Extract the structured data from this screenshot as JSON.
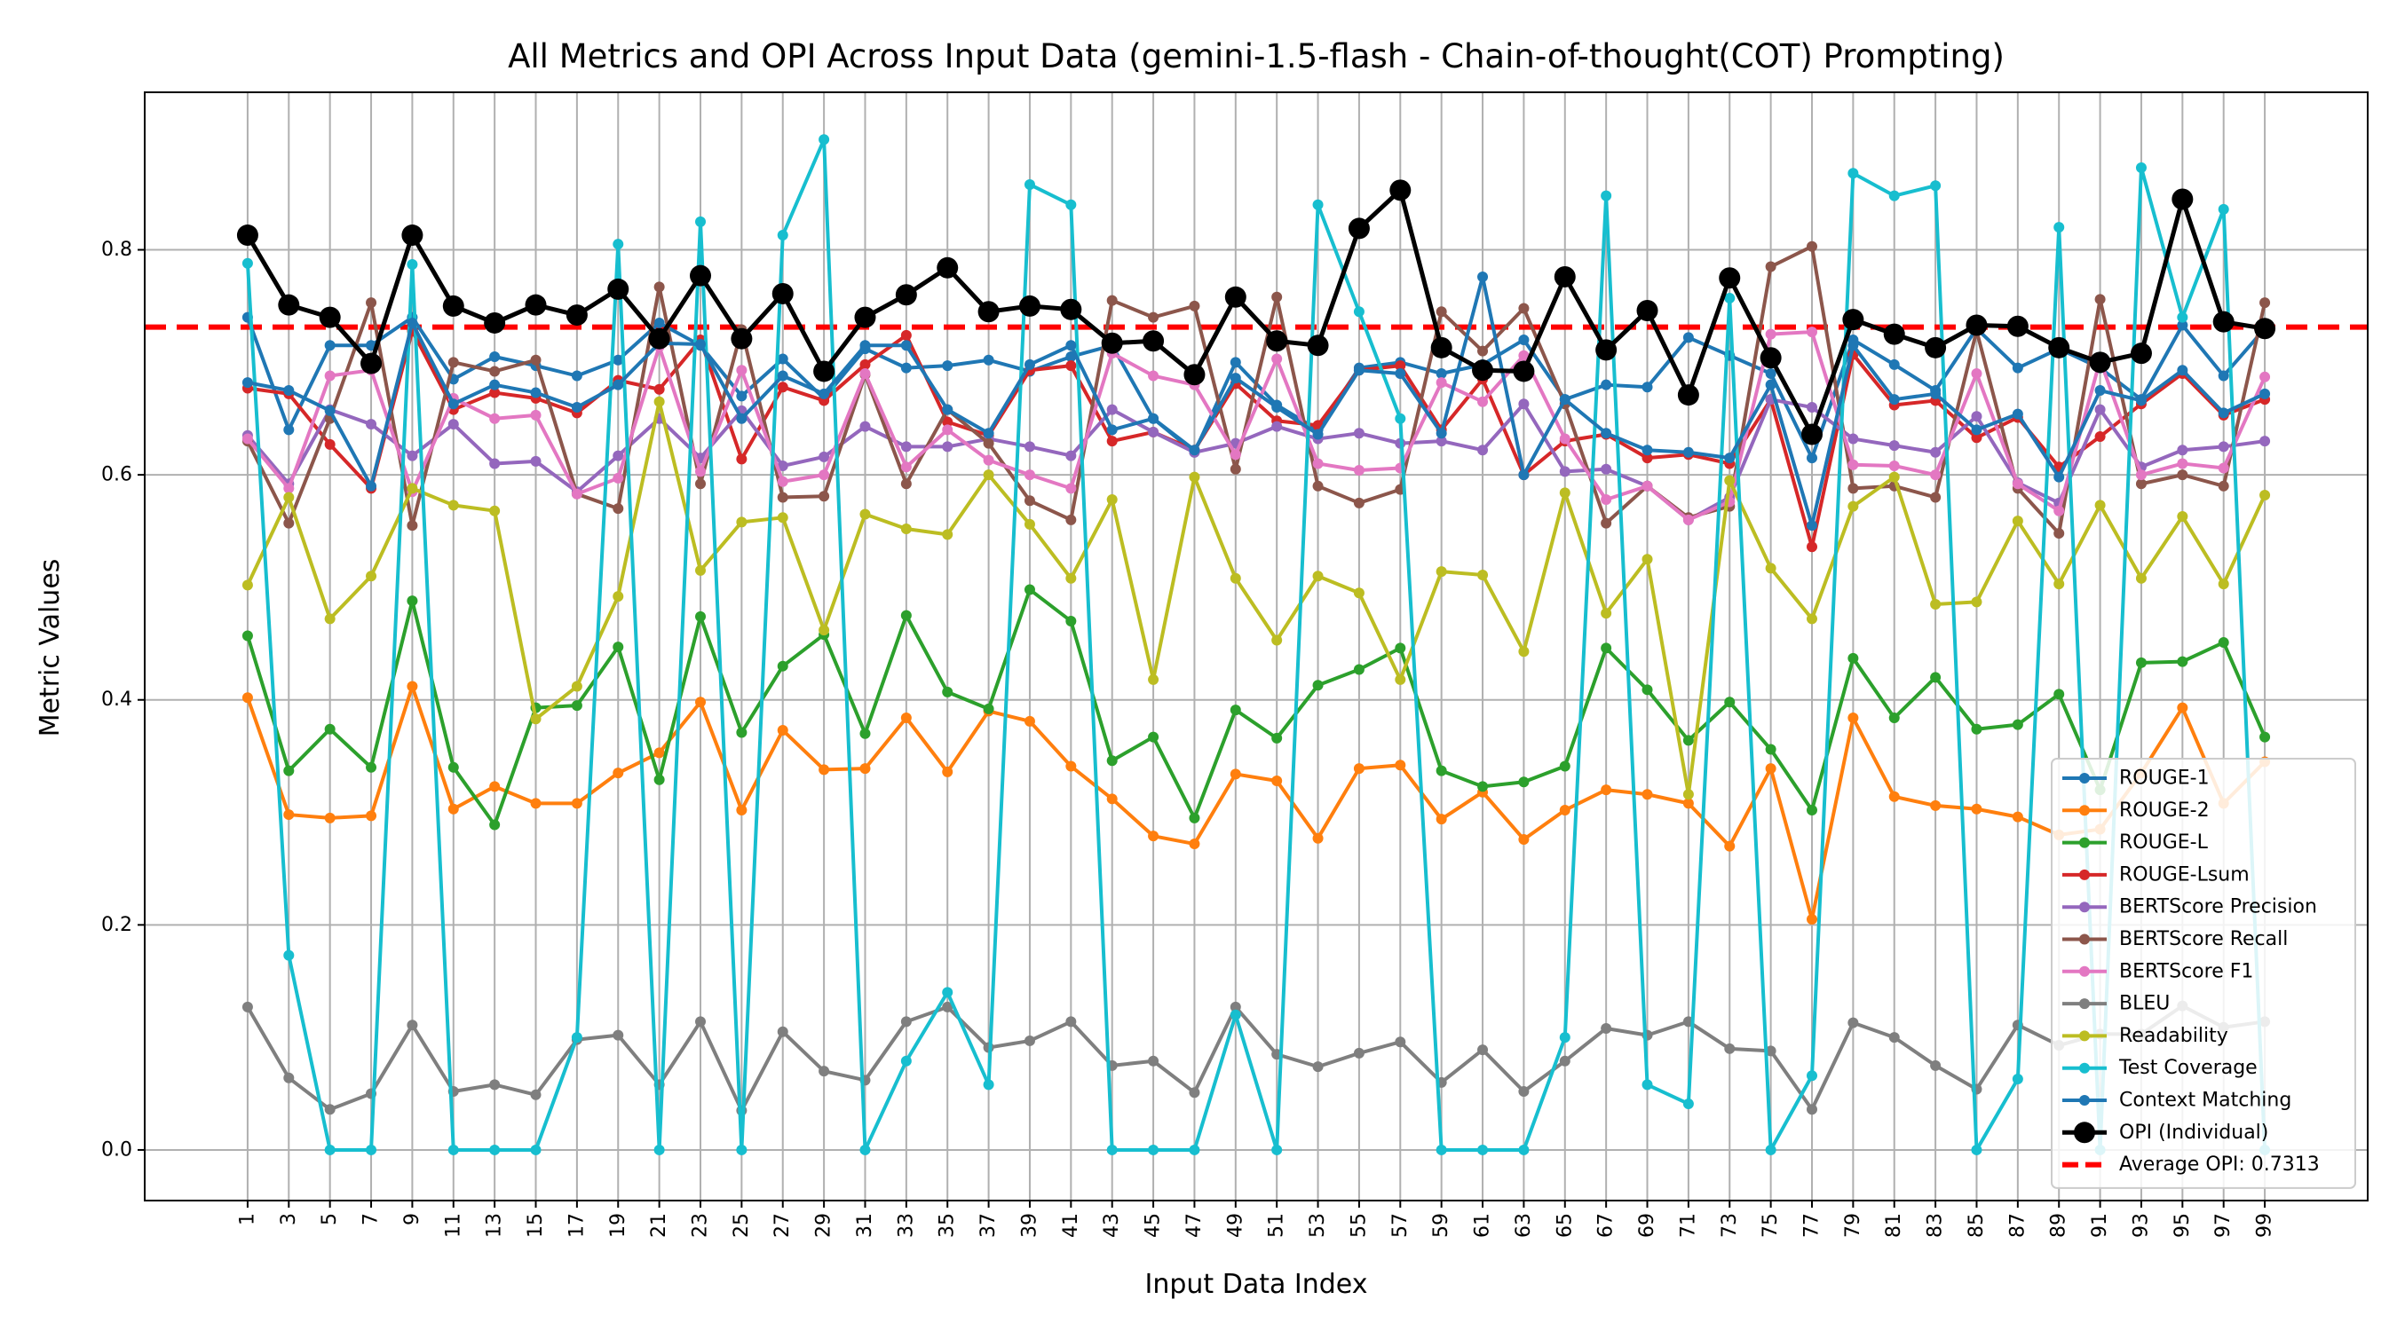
{
  "chart_data": {
    "type": "line",
    "title": "All Metrics and OPI Across Input Data (gemini-1.5-flash - Chain-of-thought(COT) Prompting)",
    "xlabel": "Input Data Index",
    "ylabel": "Metric Values",
    "x": [
      1,
      3,
      5,
      7,
      9,
      11,
      13,
      15,
      17,
      19,
      21,
      23,
      25,
      27,
      29,
      31,
      33,
      35,
      37,
      39,
      41,
      43,
      45,
      47,
      49,
      51,
      53,
      55,
      57,
      59,
      61,
      63,
      65,
      67,
      69,
      71,
      73,
      75,
      77,
      79,
      81,
      83,
      85,
      87,
      89,
      91,
      93,
      95,
      97,
      99
    ],
    "x_tick_labels": [
      "1",
      "3",
      "5",
      "7",
      "9",
      "11",
      "13",
      "15",
      "17",
      "19",
      "21",
      "23",
      "25",
      "27",
      "29",
      "31",
      "33",
      "35",
      "37",
      "39",
      "41",
      "43",
      "45",
      "47",
      "49",
      "51",
      "53",
      "55",
      "57",
      "59",
      "61",
      "63",
      "65",
      "67",
      "69",
      "71",
      "73",
      "75",
      "77",
      "79",
      "81",
      "83",
      "85",
      "87",
      "89",
      "91",
      "93",
      "95",
      "97",
      "99"
    ],
    "y_ticks": [
      "0.0",
      "0.2",
      "0.4",
      "0.6",
      "0.8"
    ],
    "ylim": [
      -0.045,
      0.94
    ],
    "xlim": [
      -4,
      104
    ],
    "grid": true,
    "legend_position": "lower-right",
    "series": [
      {
        "name": "ROUGE-1",
        "color": "#1f77b4",
        "values": [
          0.74,
          0.64,
          0.715,
          0.715,
          0.74,
          0.685,
          0.705,
          0.697,
          0.688,
          0.702,
          0.735,
          0.715,
          0.67,
          0.703,
          0.668,
          0.712,
          0.695,
          0.697,
          0.702,
          0.692,
          0.705,
          0.715,
          0.65,
          0.62,
          0.7,
          0.662,
          0.64,
          0.695,
          0.7,
          0.69,
          0.698,
          0.72,
          0.667,
          0.68,
          0.678,
          0.722,
          0.706,
          0.69,
          0.615,
          0.72,
          0.698,
          0.675,
          0.73,
          0.695,
          0.712,
          0.695,
          0.667,
          0.733,
          0.688,
          0.73
        ]
      },
      {
        "name": "ROUGE-2",
        "color": "#ff7f0e",
        "values": [
          0.402,
          0.298,
          0.295,
          0.297,
          0.412,
          0.303,
          0.323,
          0.308,
          0.308,
          0.335,
          0.353,
          0.398,
          0.302,
          0.373,
          0.338,
          0.339,
          0.384,
          0.336,
          0.39,
          0.381,
          0.341,
          0.312,
          0.279,
          0.272,
          0.334,
          0.328,
          0.277,
          0.339,
          0.342,
          0.294,
          0.318,
          0.276,
          0.302,
          0.32,
          0.316,
          0.308,
          0.27,
          0.339,
          0.205,
          0.384,
          0.314,
          0.306,
          0.303,
          0.296,
          0.28,
          0.285,
          0.335,
          0.393,
          0.308,
          0.345
        ]
      },
      {
        "name": "ROUGE-L",
        "color": "#2ca02c",
        "values": [
          0.457,
          0.337,
          0.374,
          0.34,
          0.488,
          0.34,
          0.289,
          0.393,
          0.395,
          0.447,
          0.329,
          0.474,
          0.371,
          0.43,
          0.458,
          0.37,
          0.475,
          0.407,
          0.392,
          0.498,
          0.47,
          0.346,
          0.367,
          0.295,
          0.391,
          0.366,
          0.413,
          0.427,
          0.446,
          0.337,
          0.323,
          0.327,
          0.341,
          0.446,
          0.409,
          0.364,
          0.398,
          0.356,
          0.302,
          0.437,
          0.384,
          0.42,
          0.374,
          0.378,
          0.405,
          0.32,
          0.433,
          0.434,
          0.451,
          0.367
        ]
      },
      {
        "name": "ROUGE-Lsum",
        "color": "#d62728",
        "values": [
          0.677,
          0.672,
          0.627,
          0.588,
          0.728,
          0.658,
          0.673,
          0.668,
          0.655,
          0.684,
          0.676,
          0.72,
          0.614,
          0.678,
          0.666,
          0.698,
          0.724,
          0.647,
          0.635,
          0.693,
          0.697,
          0.63,
          0.638,
          0.622,
          0.681,
          0.648,
          0.644,
          0.693,
          0.697,
          0.64,
          0.685,
          0.6,
          0.63,
          0.636,
          0.615,
          0.618,
          0.61,
          0.667,
          0.536,
          0.707,
          0.662,
          0.666,
          0.633,
          0.651,
          0.607,
          0.634,
          0.663,
          0.69,
          0.653,
          0.667
        ]
      },
      {
        "name": "BERTScore Precision",
        "color": "#9467bd",
        "values": [
          0.635,
          0.592,
          0.658,
          0.645,
          0.617,
          0.645,
          0.61,
          0.612,
          0.585,
          0.617,
          0.65,
          0.615,
          0.657,
          0.608,
          0.616,
          0.643,
          0.625,
          0.625,
          0.632,
          0.625,
          0.617,
          0.658,
          0.638,
          0.62,
          0.628,
          0.643,
          0.632,
          0.637,
          0.628,
          0.63,
          0.622,
          0.663,
          0.603,
          0.605,
          0.59,
          0.56,
          0.58,
          0.667,
          0.66,
          0.632,
          0.626,
          0.62,
          0.652,
          0.593,
          0.575,
          0.658,
          0.607,
          0.622,
          0.625,
          0.63
        ]
      },
      {
        "name": "BERTScore Recall",
        "color": "#8c564b",
        "values": [
          0.63,
          0.557,
          0.65,
          0.753,
          0.555,
          0.7,
          0.692,
          0.702,
          0.583,
          0.57,
          0.767,
          0.592,
          0.729,
          0.58,
          0.581,
          0.689,
          0.592,
          0.658,
          0.628,
          0.577,
          0.56,
          0.755,
          0.74,
          0.75,
          0.605,
          0.758,
          0.59,
          0.575,
          0.587,
          0.745,
          0.71,
          0.748,
          0.663,
          0.557,
          0.59,
          0.562,
          0.572,
          0.785,
          0.803,
          0.588,
          0.59,
          0.58,
          0.728,
          0.588,
          0.548,
          0.756,
          0.592,
          0.6,
          0.59,
          0.753
        ]
      },
      {
        "name": "BERTScore F1",
        "color": "#e377c2",
        "values": [
          0.632,
          0.588,
          0.688,
          0.693,
          0.585,
          0.668,
          0.65,
          0.653,
          0.583,
          0.597,
          0.714,
          0.603,
          0.693,
          0.594,
          0.6,
          0.69,
          0.607,
          0.64,
          0.613,
          0.6,
          0.588,
          0.708,
          0.688,
          0.68,
          0.618,
          0.703,
          0.61,
          0.604,
          0.606,
          0.682,
          0.665,
          0.706,
          0.632,
          0.578,
          0.59,
          0.56,
          0.576,
          0.725,
          0.727,
          0.609,
          0.608,
          0.6,
          0.69,
          0.592,
          0.568,
          0.702,
          0.6,
          0.61,
          0.606,
          0.687
        ]
      },
      {
        "name": "BLEU",
        "color": "#7f7f7f",
        "values": [
          0.127,
          0.064,
          0.036,
          0.05,
          0.111,
          0.052,
          0.058,
          0.049,
          0.098,
          0.102,
          0.058,
          0.114,
          0.035,
          0.105,
          0.07,
          0.062,
          0.114,
          0.127,
          0.091,
          0.097,
          0.114,
          0.075,
          0.079,
          0.051,
          0.127,
          0.085,
          0.074,
          0.086,
          0.096,
          0.06,
          0.089,
          0.052,
          0.079,
          0.108,
          0.102,
          0.114,
          0.09,
          0.088,
          0.036,
          0.113,
          0.1,
          0.075,
          0.054,
          0.111,
          0.093,
          0.103,
          0.103,
          0.128,
          0.109,
          0.114
        ]
      },
      {
        "name": "Readability",
        "color": "#bcbd22",
        "values": [
          0.502,
          0.58,
          0.472,
          0.51,
          0.588,
          0.573,
          0.568,
          0.383,
          0.412,
          0.492,
          0.665,
          0.515,
          0.558,
          0.562,
          0.462,
          0.565,
          0.552,
          0.547,
          0.6,
          0.556,
          0.508,
          0.578,
          0.418,
          0.598,
          0.508,
          0.453,
          0.51,
          0.495,
          0.418,
          0.514,
          0.511,
          0.443,
          0.584,
          0.477,
          0.525,
          0.316,
          0.595,
          0.517,
          0.472,
          0.572,
          0.598,
          0.485,
          0.487,
          0.559,
          0.503,
          0.573,
          0.508,
          0.563,
          0.503,
          0.582
        ]
      },
      {
        "name": "Test Coverage",
        "color": "#17becf",
        "values": [
          0.788,
          0.173,
          0.0,
          0.0,
          0.787,
          0.0,
          0.0,
          0.0,
          0.1,
          0.805,
          0.0,
          0.825,
          0.0,
          0.813,
          0.898,
          0.0,
          0.079,
          0.14,
          0.058,
          0.858,
          0.84,
          0.0,
          0.0,
          0.0,
          0.12,
          0.0,
          0.84,
          0.745,
          0.65,
          0.0,
          0.0,
          0.0,
          0.1,
          0.848,
          0.058,
          0.041,
          0.757,
          0.0,
          0.066,
          0.868,
          0.848,
          0.857,
          0.0,
          0.063,
          0.82,
          0.0,
          0.873,
          0.74,
          0.836,
          0.0
        ]
      },
      {
        "name": "Context Matching",
        "color": "#1f77b4",
        "values": [
          0.682,
          0.675,
          0.657,
          0.59,
          0.735,
          0.663,
          0.68,
          0.673,
          0.66,
          0.68,
          0.717,
          0.716,
          0.65,
          0.688,
          0.672,
          0.715,
          0.715,
          0.658,
          0.637,
          0.698,
          0.715,
          0.64,
          0.65,
          0.622,
          0.686,
          0.66,
          0.636,
          0.693,
          0.69,
          0.637,
          0.776,
          0.6,
          0.667,
          0.637,
          0.622,
          0.62,
          0.615,
          0.68,
          0.555,
          0.715,
          0.667,
          0.672,
          0.64,
          0.654,
          0.598,
          0.675,
          0.666,
          0.693,
          0.655,
          0.672
        ]
      },
      {
        "name": "OPI (Individual)",
        "color": "#000000",
        "values": [
          0.813,
          0.751,
          0.74,
          0.699,
          0.813,
          0.75,
          0.735,
          0.751,
          0.742,
          0.765,
          0.721,
          0.777,
          0.721,
          0.761,
          0.692,
          0.74,
          0.76,
          0.784,
          0.745,
          0.75,
          0.747,
          0.717,
          0.719,
          0.689,
          0.758,
          0.719,
          0.715,
          0.819,
          0.853,
          0.713,
          0.693,
          0.692,
          0.776,
          0.711,
          0.746,
          0.671,
          0.775,
          0.704,
          0.636,
          0.738,
          0.725,
          0.713,
          0.733,
          0.732,
          0.713,
          0.7,
          0.708,
          0.845,
          0.736,
          0.73
        ]
      }
    ],
    "average_opi": {
      "label": "Average OPI: 0.7313",
      "value": 0.7313,
      "color": "#ff0000"
    }
  }
}
